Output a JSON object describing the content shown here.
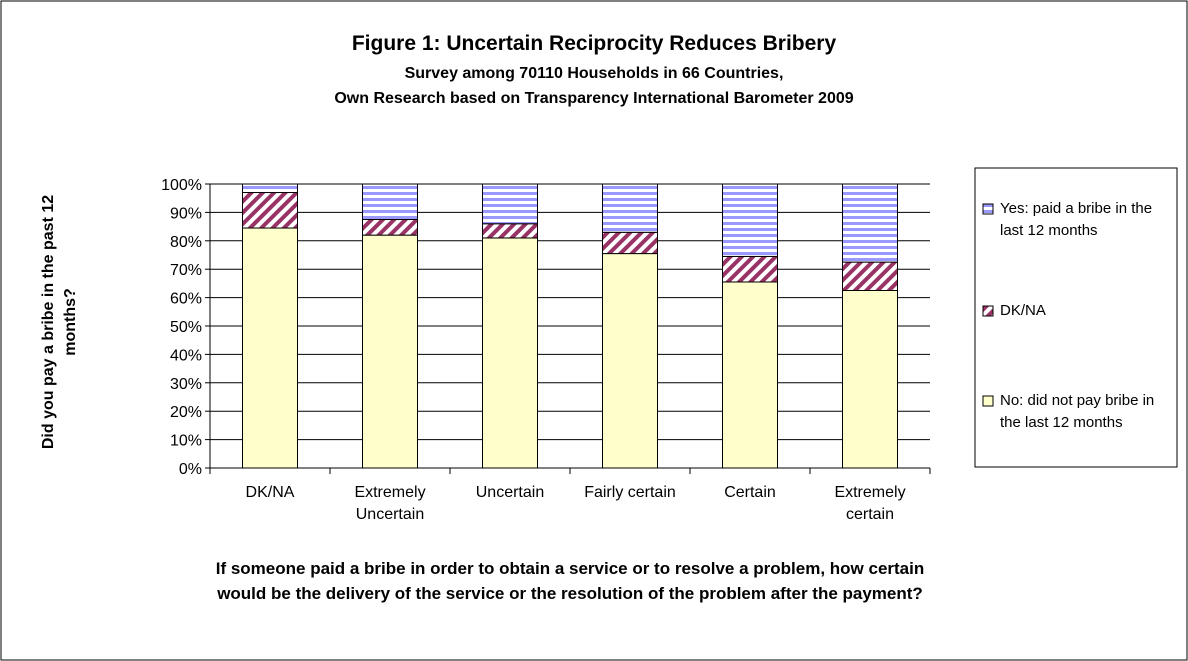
{
  "chart_data": {
    "type": "stacked_bar",
    "title": "Figure 1: Uncertain Reciprocity Reduces Bribery",
    "subtitle": [
      "Survey among 70110 Households in 66 Countries,",
      "Own Research based on Transparency International Barometer 2009"
    ],
    "y_label": "Did you pay a bribe in the past 12 months?",
    "x_label": "If someone paid a bribe in order to obtain a service or to resolve a problem, how certain would be the delivery of the service or the resolution of the problem after the payment?",
    "categories": [
      "DK/NA",
      "Extremely Uncertain",
      "Uncertain",
      "Fairly certain",
      "Certain",
      "Extremely certain"
    ],
    "series": [
      {
        "name": "No: did not pay bribe in the last 12 months",
        "color": "#ffffcc",
        "values": [
          84.5,
          82,
          81,
          75.5,
          65.5,
          62.5
        ]
      },
      {
        "name": "DK/NA",
        "color": "#993366",
        "values": [
          12.5,
          5.5,
          5,
          7.5,
          9,
          10
        ]
      },
      {
        "name": "Yes: paid a bribe in the last 12 months",
        "color": "#9999ff",
        "values": [
          3,
          12.5,
          14,
          17,
          25.5,
          27.5
        ]
      }
    ],
    "ylim": [
      0,
      100
    ],
    "yticks": [
      {
        "value": 0,
        "label": "0%"
      },
      {
        "value": 10,
        "label": "10%"
      },
      {
        "value": 20,
        "label": "20%"
      },
      {
        "value": 30,
        "label": "30%"
      },
      {
        "value": 40,
        "label": "40%"
      },
      {
        "value": 50,
        "label": "50%"
      },
      {
        "value": 60,
        "label": "60%"
      },
      {
        "value": 70,
        "label": "70%"
      },
      {
        "value": 80,
        "label": "80%"
      },
      {
        "value": 90,
        "label": "90%"
      },
      {
        "value": 100,
        "label": "100%"
      }
    ],
    "grid": true,
    "legend": "right"
  }
}
